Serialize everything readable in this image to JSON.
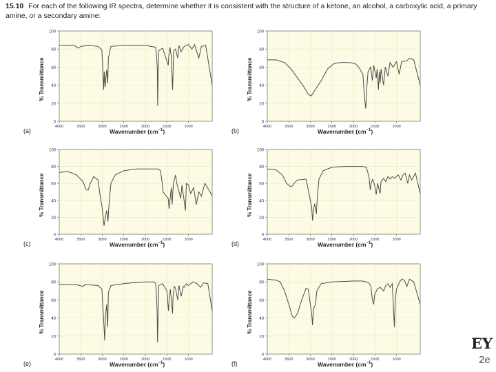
{
  "question": {
    "number": "15.10",
    "text": "For each of the following IR spectra, determine whether it is consistent with the structure of a ketone, an alcohol, a carboxylic acid, a primary amine, or a secondary amine:"
  },
  "chart_data": [
    {
      "type": "line",
      "label": "(a)",
      "xlabel": "Wavenumber (cm",
      "xlabel_exp": "−1",
      "xlabel_close": ")",
      "ylabel": "% Transmittance",
      "xlim": [
        4000,
        450
      ],
      "ylim": [
        0,
        100
      ],
      "xticks": [
        4000,
        3500,
        3000,
        2500,
        2000,
        1500,
        1000
      ],
      "yticks": [
        0,
        20,
        40,
        60,
        80,
        100
      ],
      "points": [
        [
          4000,
          84
        ],
        [
          3650,
          84
        ],
        [
          3560,
          81
        ],
        [
          3500,
          83
        ],
        [
          3300,
          84
        ],
        [
          3100,
          83
        ],
        [
          3010,
          79
        ],
        [
          2990,
          58
        ],
        [
          2968,
          35
        ],
        [
          2955,
          55
        ],
        [
          2935,
          38
        ],
        [
          2900,
          57
        ],
        [
          2875,
          42
        ],
        [
          2860,
          70
        ],
        [
          2800,
          83
        ],
        [
          2500,
          84
        ],
        [
          2000,
          84
        ],
        [
          1880,
          83
        ],
        [
          1760,
          82
        ],
        [
          1725,
          60
        ],
        [
          1715,
          17
        ],
        [
          1705,
          55
        ],
        [
          1690,
          78
        ],
        [
          1600,
          81
        ],
        [
          1470,
          62
        ],
        [
          1455,
          74
        ],
        [
          1430,
          82
        ],
        [
          1400,
          72
        ],
        [
          1370,
          35
        ],
        [
          1360,
          50
        ],
        [
          1345,
          78
        ],
        [
          1300,
          80
        ],
        [
          1250,
          70
        ],
        [
          1220,
          84
        ],
        [
          1170,
          77
        ],
        [
          1100,
          83
        ],
        [
          1000,
          85
        ],
        [
          920,
          80
        ],
        [
          860,
          85
        ],
        [
          760,
          70
        ],
        [
          700,
          83
        ],
        [
          600,
          84
        ],
        [
          450,
          40
        ]
      ]
    },
    {
      "type": "line",
      "label": "(b)",
      "xlabel": "Wavenumber (cm",
      "xlabel_exp": "−1",
      "xlabel_close": ")",
      "ylabel": "% Transmittance",
      "xlim": [
        4000,
        450
      ],
      "ylim": [
        0,
        100
      ],
      "xticks": [
        4000,
        3500,
        3000,
        2500,
        2000,
        1500,
        1000
      ],
      "yticks": [
        0,
        20,
        40,
        60,
        80,
        100
      ],
      "points": [
        [
          4000,
          68
        ],
        [
          3800,
          68
        ],
        [
          3600,
          65
        ],
        [
          3450,
          58
        ],
        [
          3300,
          48
        ],
        [
          3150,
          38
        ],
        [
          3050,
          30
        ],
        [
          2980,
          28
        ],
        [
          2900,
          34
        ],
        [
          2750,
          45
        ],
        [
          2600,
          58
        ],
        [
          2450,
          64
        ],
        [
          2300,
          65
        ],
        [
          2100,
          65
        ],
        [
          1960,
          64
        ],
        [
          1880,
          60
        ],
        [
          1780,
          52
        ],
        [
          1750,
          30
        ],
        [
          1715,
          14
        ],
        [
          1690,
          38
        ],
        [
          1660,
          55
        ],
        [
          1600,
          60
        ],
        [
          1560,
          45
        ],
        [
          1530,
          62
        ],
        [
          1470,
          48
        ],
        [
          1450,
          58
        ],
        [
          1420,
          35
        ],
        [
          1400,
          55
        ],
        [
          1380,
          42
        ],
        [
          1360,
          58
        ],
        [
          1300,
          40
        ],
        [
          1260,
          60
        ],
        [
          1200,
          50
        ],
        [
          1150,
          65
        ],
        [
          1080,
          60
        ],
        [
          1000,
          66
        ],
        [
          940,
          52
        ],
        [
          880,
          66
        ],
        [
          760,
          67
        ],
        [
          700,
          70
        ],
        [
          600,
          68
        ],
        [
          450,
          40
        ]
      ]
    },
    {
      "type": "line",
      "label": "(c)",
      "xlabel": "Wavenumber (cm",
      "xlabel_exp": "−1",
      "xlabel_close": ")",
      "ylabel": "% Transmittance",
      "xlim": [
        4000,
        450
      ],
      "ylim": [
        0,
        100
      ],
      "xticks": [
        4000,
        3500,
        3000,
        2500,
        2000,
        1500,
        1000
      ],
      "yticks": [
        0,
        20,
        40,
        60,
        80,
        100
      ],
      "points": [
        [
          4000,
          73
        ],
        [
          3800,
          74
        ],
        [
          3600,
          70
        ],
        [
          3450,
          62
        ],
        [
          3380,
          53
        ],
        [
          3330,
          52
        ],
        [
          3280,
          60
        ],
        [
          3200,
          68
        ],
        [
          3100,
          64
        ],
        [
          3050,
          45
        ],
        [
          3000,
          30
        ],
        [
          2960,
          10
        ],
        [
          2930,
          20
        ],
        [
          2900,
          28
        ],
        [
          2870,
          15
        ],
        [
          2840,
          38
        ],
        [
          2800,
          60
        ],
        [
          2700,
          70
        ],
        [
          2500,
          75
        ],
        [
          2200,
          77
        ],
        [
          2000,
          77
        ],
        [
          1700,
          77
        ],
        [
          1650,
          75
        ],
        [
          1610,
          60
        ],
        [
          1590,
          50
        ],
        [
          1470,
          42
        ],
        [
          1450,
          30
        ],
        [
          1400,
          55
        ],
        [
          1380,
          35
        ],
        [
          1350,
          60
        ],
        [
          1300,
          70
        ],
        [
          1270,
          60
        ],
        [
          1180,
          42
        ],
        [
          1150,
          58
        ],
        [
          1070,
          28
        ],
        [
          1050,
          60
        ],
        [
          1000,
          58
        ],
        [
          950,
          48
        ],
        [
          880,
          55
        ],
        [
          820,
          35
        ],
        [
          760,
          50
        ],
        [
          700,
          45
        ],
        [
          620,
          60
        ],
        [
          500,
          50
        ],
        [
          450,
          45
        ]
      ]
    },
    {
      "type": "line",
      "label": "(d)",
      "xlabel": "Wavenumber (cm",
      "xlabel_exp": "−1",
      "xlabel_close": ")",
      "ylabel": "% Transmittance",
      "xlim": [
        4000,
        450
      ],
      "ylim": [
        0,
        100
      ],
      "xticks": [
        4000,
        3500,
        3000,
        2500,
        2000,
        1500,
        1000
      ],
      "yticks": [
        0,
        20,
        40,
        60,
        80,
        100
      ],
      "points": [
        [
          4000,
          77
        ],
        [
          3800,
          76
        ],
        [
          3650,
          70
        ],
        [
          3550,
          60
        ],
        [
          3460,
          56
        ],
        [
          3420,
          57
        ],
        [
          3380,
          60
        ],
        [
          3300,
          64
        ],
        [
          3100,
          65
        ],
        [
          3060,
          55
        ],
        [
          2970,
          32
        ],
        [
          2950,
          16
        ],
        [
          2930,
          28
        ],
        [
          2900,
          36
        ],
        [
          2860,
          24
        ],
        [
          2840,
          42
        ],
        [
          2800,
          65
        ],
        [
          2700,
          75
        ],
        [
          2500,
          79
        ],
        [
          2200,
          80
        ],
        [
          2000,
          80
        ],
        [
          1800,
          80
        ],
        [
          1700,
          79
        ],
        [
          1640,
          68
        ],
        [
          1610,
          52
        ],
        [
          1590,
          60
        ],
        [
          1550,
          65
        ],
        [
          1510,
          58
        ],
        [
          1470,
          47
        ],
        [
          1440,
          60
        ],
        [
          1380,
          48
        ],
        [
          1360,
          62
        ],
        [
          1300,
          66
        ],
        [
          1250,
          62
        ],
        [
          1200,
          68
        ],
        [
          1150,
          65
        ],
        [
          1100,
          68
        ],
        [
          1050,
          66
        ],
        [
          960,
          70
        ],
        [
          900,
          64
        ],
        [
          850,
          70
        ],
        [
          800,
          72
        ],
        [
          740,
          60
        ],
        [
          700,
          70
        ],
        [
          650,
          64
        ],
        [
          560,
          72
        ],
        [
          450,
          48
        ]
      ]
    },
    {
      "type": "line",
      "label": "(e)",
      "xlabel": "Wavenumber (cm",
      "xlabel_exp": "−1",
      "xlabel_close": ")",
      "ylabel": "% Transmittance",
      "xlim": [
        4000,
        450
      ],
      "ylim": [
        0,
        100
      ],
      "xticks": [
        4000,
        3500,
        3000,
        2500,
        2000,
        1500,
        1000
      ],
      "yticks": [
        0,
        20,
        40,
        60,
        80,
        100
      ],
      "points": [
        [
          4000,
          77
        ],
        [
          3800,
          77
        ],
        [
          3600,
          77
        ],
        [
          3450,
          75
        ],
        [
          3400,
          77
        ],
        [
          3100,
          76
        ],
        [
          3010,
          72
        ],
        [
          2960,
          30
        ],
        [
          2945,
          15
        ],
        [
          2930,
          40
        ],
        [
          2900,
          55
        ],
        [
          2875,
          30
        ],
        [
          2860,
          68
        ],
        [
          2800,
          76
        ],
        [
          2500,
          78
        ],
        [
          2300,
          79
        ],
        [
          2000,
          80
        ],
        [
          1800,
          80
        ],
        [
          1760,
          78
        ],
        [
          1730,
          50
        ],
        [
          1718,
          13
        ],
        [
          1705,
          45
        ],
        [
          1690,
          76
        ],
        [
          1600,
          78
        ],
        [
          1500,
          70
        ],
        [
          1465,
          48
        ],
        [
          1450,
          60
        ],
        [
          1420,
          72
        ],
        [
          1370,
          45
        ],
        [
          1360,
          62
        ],
        [
          1330,
          75
        ],
        [
          1300,
          73
        ],
        [
          1250,
          60
        ],
        [
          1220,
          76
        ],
        [
          1170,
          64
        ],
        [
          1120,
          75
        ],
        [
          1100,
          74
        ],
        [
          1050,
          78
        ],
        [
          1000,
          76
        ],
        [
          900,
          80
        ],
        [
          800,
          78
        ],
        [
          720,
          74
        ],
        [
          650,
          79
        ],
        [
          550,
          78
        ],
        [
          450,
          48
        ]
      ]
    },
    {
      "type": "line",
      "label": "(f)",
      "xlabel": "Wavenumber (cm",
      "xlabel_exp": "−1",
      "xlabel_close": ")",
      "ylabel": "% Transmittance",
      "xlim": [
        4000,
        450
      ],
      "ylim": [
        0,
        100
      ],
      "xticks": [
        4000,
        3500,
        3000,
        2500,
        2000,
        1500,
        1000
      ],
      "yticks": [
        0,
        20,
        40,
        60,
        80,
        100
      ],
      "points": [
        [
          4000,
          83
        ],
        [
          3800,
          82
        ],
        [
          3700,
          80
        ],
        [
          3600,
          70
        ],
        [
          3500,
          55
        ],
        [
          3420,
          42
        ],
        [
          3370,
          40
        ],
        [
          3300,
          45
        ],
        [
          3200,
          60
        ],
        [
          3100,
          73
        ],
        [
          3050,
          72
        ],
        [
          2970,
          45
        ],
        [
          2950,
          32
        ],
        [
          2930,
          50
        ],
        [
          2880,
          55
        ],
        [
          2850,
          70
        ],
        [
          2750,
          78
        ],
        [
          2500,
          80
        ],
        [
          2000,
          81
        ],
        [
          1800,
          81
        ],
        [
          1700,
          80
        ],
        [
          1650,
          79
        ],
        [
          1600,
          76
        ],
        [
          1560,
          60
        ],
        [
          1530,
          55
        ],
        [
          1510,
          65
        ],
        [
          1450,
          72
        ],
        [
          1380,
          74
        ],
        [
          1300,
          70
        ],
        [
          1250,
          76
        ],
        [
          1200,
          78
        ],
        [
          1150,
          74
        ],
        [
          1100,
          78
        ],
        [
          1075,
          55
        ],
        [
          1050,
          30
        ],
        [
          1030,
          60
        ],
        [
          1000,
          72
        ],
        [
          930,
          80
        ],
        [
          880,
          83
        ],
        [
          820,
          82
        ],
        [
          760,
          75
        ],
        [
          700,
          83
        ],
        [
          600,
          80
        ],
        [
          450,
          55
        ]
      ]
    }
  ],
  "corner_text": {
    "brand_fragment": "EY",
    "edition_fragment": "2e"
  }
}
